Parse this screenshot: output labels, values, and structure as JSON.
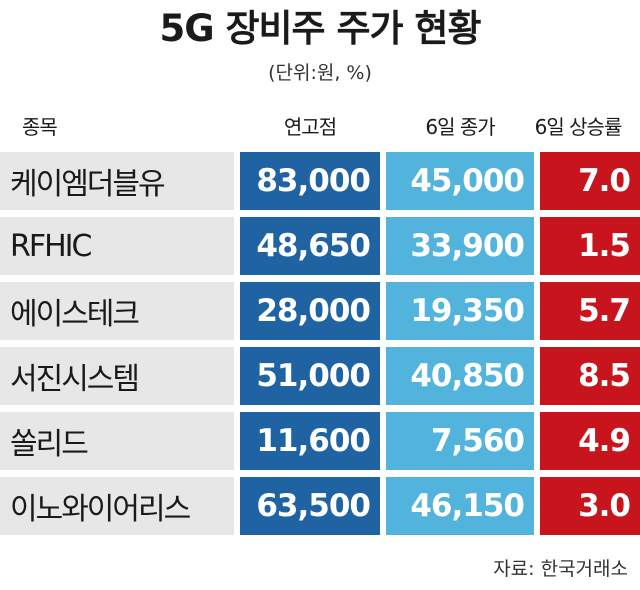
{
  "chart_data": {
    "type": "table",
    "title": "5G 장비주 주가 현황",
    "unit_note": "(단위:원, %)",
    "columns": [
      "종목",
      "연고점",
      "6일 종가",
      "6일 상승률"
    ],
    "rows": [
      {
        "name": "케이엠더블유",
        "high": "83,000",
        "close": "45,000",
        "rate": "7.0"
      },
      {
        "name": "RFHIC",
        "high": "48,650",
        "close": "33,900",
        "rate": "1.5"
      },
      {
        "name": "에이스테크",
        "high": "28,000",
        "close": "19,350",
        "rate": "5.7"
      },
      {
        "name": "서진시스템",
        "high": "51,000",
        "close": "40,850",
        "rate": "8.5"
      },
      {
        "name": "쏠리드",
        "high": "11,600",
        "close": "7,560",
        "rate": "4.9"
      },
      {
        "name": "이노와이어리스",
        "high": "63,500",
        "close": "46,150",
        "rate": "3.0"
      }
    ],
    "source": "자료: 한국거래소",
    "colors": {
      "name_bg": "#e7e7e7",
      "high_bg": "#1f63a3",
      "close_bg": "#52b4dc",
      "rate_bg": "#c8141d"
    }
  }
}
